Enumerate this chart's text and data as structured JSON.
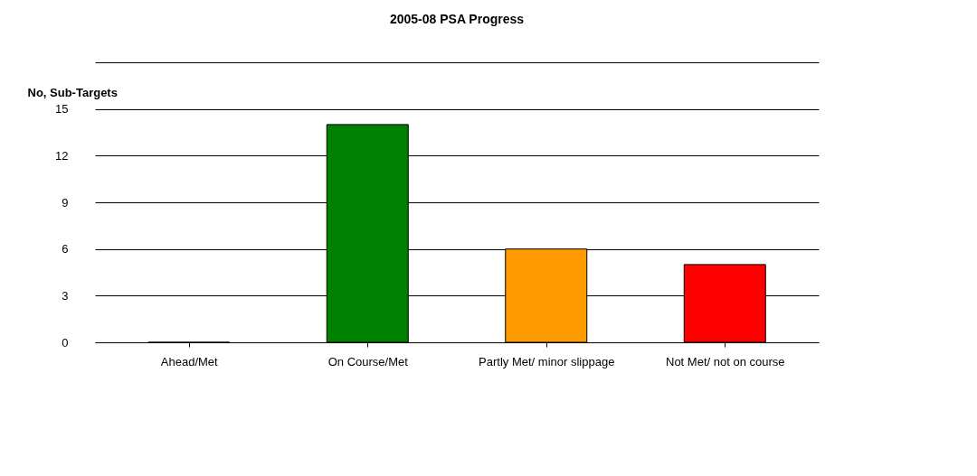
{
  "chart_data": {
    "type": "bar",
    "title": "2005-08 PSA Progress",
    "ylabel": "No, Sub-Targets",
    "categories": [
      "Ahead/Met",
      "On Course/Met",
      "Partly Met/ minor slippage",
      "Not Met/ not on course"
    ],
    "values": [
      0,
      14,
      6,
      5
    ],
    "colors": [
      "#000000",
      "#008000",
      "#ff9900",
      "#ff0000"
    ],
    "ylim": [
      0,
      18
    ],
    "yticks": [
      0,
      3,
      6,
      9,
      12,
      15,
      {
        "value": 18,
        "label": null
      }
    ],
    "grid": "y"
  }
}
